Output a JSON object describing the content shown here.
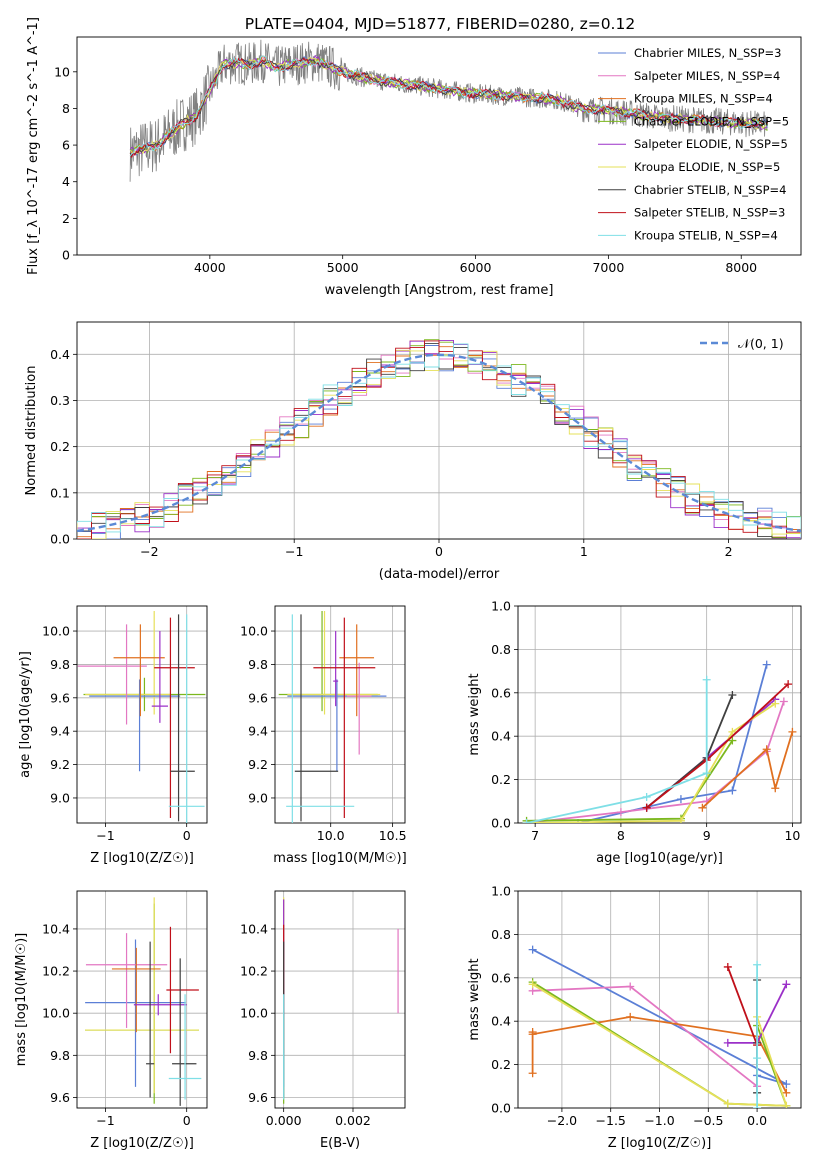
{
  "figure_title": "PLATE=0404, MJD=51877, FIBERID=0280, z=0.12",
  "chart_data": [
    {
      "id": "spectrum",
      "type": "line",
      "title": "PLATE=0404, MJD=51877, FIBERID=0280, z=0.12",
      "xlabel": "wavelength [Angstrom, rest frame]",
      "ylabel": "Flux [f_λ 10^-17 erg cm^-2 s^-1 A^-1]",
      "xlim": [
        3000,
        8450
      ],
      "ylim": [
        0,
        11.9
      ],
      "xticks": [
        4000,
        5000,
        6000,
        7000,
        8000
      ],
      "yticks": [
        0,
        2,
        4,
        6,
        8,
        10
      ],
      "grid": false,
      "legend_position": "top-right",
      "observed_continuum": {
        "x": [
          3400,
          3500,
          3600,
          3700,
          3800,
          3900,
          4000,
          4100,
          4200,
          4300,
          4400,
          4500,
          4600,
          4700,
          4800,
          4900,
          5000,
          5200,
          5400,
          5600,
          5800,
          6000,
          6200,
          6400,
          6600,
          6800,
          7000,
          7200,
          7400,
          7600,
          7800,
          8000,
          8200
        ],
        "y": [
          5.6,
          5.8,
          6.0,
          6.6,
          7.2,
          7.6,
          9.0,
          10.4,
          10.5,
          10.4,
          10.6,
          10.2,
          10.4,
          10.5,
          10.6,
          10.3,
          10.0,
          9.6,
          9.4,
          9.2,
          9.0,
          8.8,
          8.7,
          8.6,
          8.5,
          8.0,
          7.9,
          7.7,
          7.5,
          7.4,
          7.3,
          7.2,
          7.1
        ]
      },
      "series": [
        {
          "name": "Chabrier MILES, N_SSP=3",
          "color": "#5b7fd6"
        },
        {
          "name": "Salpeter MILES, N_SSP=4",
          "color": "#e377c2"
        },
        {
          "name": "Kroupa MILES, N_SSP=4",
          "color": "#e07020"
        },
        {
          "name": "Chabrier ELODIE, N_SSP=5",
          "color": "#7cb81e"
        },
        {
          "name": "Salpeter ELODIE, N_SSP=5",
          "color": "#9b30c8"
        },
        {
          "name": "Kroupa ELODIE, N_SSP=5",
          "color": "#e6e05a"
        },
        {
          "name": "Chabrier STELIB, N_SSP=4",
          "color": "#404040"
        },
        {
          "name": "Salpeter STELIB, N_SSP=3",
          "color": "#c0101a"
        },
        {
          "name": "Kroupa STELIB, N_SSP=4",
          "color": "#7fdfe6"
        }
      ]
    },
    {
      "id": "residuals",
      "type": "line",
      "xlabel": "(data-model)/error",
      "ylabel": "Normed distribution",
      "xlim": [
        -2.5,
        2.5
      ],
      "ylim": [
        0,
        0.47
      ],
      "xticks": [
        -2,
        -1,
        0,
        1,
        2
      ],
      "yticks": [
        0.0,
        0.1,
        0.2,
        0.3,
        0.4
      ],
      "grid": true,
      "legend": [
        "𝒩(0, 1)"
      ],
      "legend_position": "top-right",
      "reference_curve": "normal(0,1)"
    },
    {
      "id": "age_vs_Z",
      "type": "scatter",
      "xlabel": "Z [log10(Z/Z☉)]",
      "ylabel": "age [log10(age/yr)]",
      "xlim": [
        -1.35,
        0.25
      ],
      "ylim": [
        8.85,
        10.15
      ],
      "xticks": [
        -1,
        0
      ],
      "yticks": [
        9.0,
        9.2,
        9.4,
        9.6,
        9.8,
        10.0
      ],
      "grid": true,
      "points": [
        {
          "x": -0.52,
          "y": 9.62,
          "xerr": [
            0.75,
            0.75
          ],
          "yerr": [
            0.1,
            0.1
          ],
          "color": "#7cb81e"
        },
        {
          "x": -0.4,
          "y": 9.62,
          "xerr": [
            0.85,
            0.2
          ],
          "yerr": [
            0.12,
            0.5
          ],
          "color": "#e6e05a"
        },
        {
          "x": -0.58,
          "y": 9.61,
          "xerr": [
            0.62,
            0.5
          ],
          "yerr": [
            0.45,
            0.1
          ],
          "color": "#5b7fd6"
        },
        {
          "x": -0.74,
          "y": 9.79,
          "xerr": [
            0.6,
            0.25
          ],
          "yerr": [
            0.35,
            0.25
          ],
          "color": "#e377c2"
        },
        {
          "x": -0.57,
          "y": 9.84,
          "xerr": [
            0.33,
            0.3
          ],
          "yerr": [
            0.35,
            0.2
          ],
          "color": "#e07020"
        },
        {
          "x": -0.33,
          "y": 9.55,
          "xerr": [
            0.1,
            0.1
          ],
          "yerr": [
            0.1,
            0.45
          ],
          "color": "#9b30c8"
        },
        {
          "x": -0.2,
          "y": 9.78,
          "xerr": [
            0.2,
            0.3
          ],
          "yerr": [
            0.9,
            0.3
          ],
          "color": "#c0101a"
        },
        {
          "x": -0.1,
          "y": 9.16,
          "xerr": [
            0.1,
            0.2
          ],
          "yerr": [
            0.3,
            0.94
          ],
          "color": "#404040"
        },
        {
          "x": 0.0,
          "y": 8.95,
          "xerr": [
            0.22,
            0.22
          ],
          "yerr": [
            0.1,
            1.15
          ],
          "color": "#7fdfe6"
        }
      ]
    },
    {
      "id": "age_vs_mass",
      "type": "scatter",
      "xlabel": "mass [log10(M/M☉)]",
      "ylabel": "",
      "xlim": [
        9.55,
        10.6
      ],
      "ylim": [
        8.85,
        10.15
      ],
      "xticks": [
        9.5,
        10.0,
        10.5
      ],
      "yticks": [
        9.0,
        9.2,
        9.4,
        9.6,
        9.8,
        10.0
      ],
      "grid": true,
      "points": [
        {
          "x": 9.93,
          "y": 9.62,
          "xerr": [
            0.35,
            0.45
          ],
          "yerr": [
            0.1,
            0.5
          ],
          "color": "#7cb81e"
        },
        {
          "x": 9.95,
          "y": 9.62,
          "xerr": [
            0.3,
            0.45
          ],
          "yerr": [
            0.12,
            0.5
          ],
          "color": "#e6e05a"
        },
        {
          "x": 10.05,
          "y": 9.61,
          "xerr": [
            0.4,
            0.4
          ],
          "yerr": [
            0.45,
            0.1
          ],
          "color": "#5b7fd6"
        },
        {
          "x": 10.23,
          "y": 9.61,
          "xerr": [
            0.1,
            0.1
          ],
          "yerr": [
            0.35,
            0.2
          ],
          "color": "#e377c2"
        },
        {
          "x": 10.21,
          "y": 9.84,
          "xerr": [
            0.14,
            0.14
          ],
          "yerr": [
            0.35,
            0.2
          ],
          "color": "#e07020"
        },
        {
          "x": 10.04,
          "y": 9.7,
          "xerr": [
            0.02,
            0.02
          ],
          "yerr": [
            0.15,
            0.3
          ],
          "color": "#9b30c8"
        },
        {
          "x": 10.11,
          "y": 9.78,
          "xerr": [
            0.25,
            0.25
          ],
          "yerr": [
            0.9,
            0.3
          ],
          "color": "#c0101a"
        },
        {
          "x": 9.76,
          "y": 9.16,
          "xerr": [
            0.05,
            0.3
          ],
          "yerr": [
            0.3,
            0.94
          ],
          "color": "#404040"
        },
        {
          "x": 9.69,
          "y": 8.95,
          "xerr": [
            0.05,
            0.5
          ],
          "yerr": [
            0.1,
            1.15
          ],
          "color": "#7fdfe6"
        }
      ]
    },
    {
      "id": "mass_weight_vs_age",
      "type": "line",
      "xlabel": "age [log10(age/yr)]",
      "ylabel": "mass weight",
      "xlim": [
        6.8,
        10.1
      ],
      "ylim": [
        0.0,
        1.0
      ],
      "xticks": [
        7,
        8,
        9,
        10
      ],
      "yticks": [
        0.0,
        0.2,
        0.4,
        0.6,
        0.8,
        1.0
      ],
      "grid": true,
      "series": [
        {
          "color": "#5b7fd6",
          "x": [
            7.5,
            8.7,
            9.3,
            9.7
          ],
          "y": [
            0.0,
            0.11,
            0.15,
            0.73
          ]
        },
        {
          "color": "#e377c2",
          "x": [
            6.9,
            8.0,
            9.0,
            9.7,
            9.9
          ],
          "y": [
            0.0,
            0.05,
            0.1,
            0.33,
            0.56
          ]
        },
        {
          "color": "#e07020",
          "x": [
            8.95,
            9.7,
            9.8,
            10.0
          ],
          "y": [
            0.07,
            0.34,
            0.16,
            0.42
          ]
        },
        {
          "color": "#7cb81e",
          "x": [
            6.9,
            8.7,
            9.3
          ],
          "y": [
            0.01,
            0.02,
            0.38
          ]
        },
        {
          "color": "#9b30c8",
          "x": [
            8.3,
            9.0,
            9.8
          ],
          "y": [
            0.07,
            0.3,
            0.57
          ]
        },
        {
          "color": "#e6e05a",
          "x": [
            6.9,
            8.7,
            9.3,
            9.8
          ],
          "y": [
            0.0,
            0.01,
            0.42,
            0.55
          ]
        },
        {
          "color": "#404040",
          "x": [
            8.3,
            9.0,
            9.3
          ],
          "y": [
            0.07,
            0.3,
            0.59
          ]
        },
        {
          "color": "#c0101a",
          "x": [
            8.3,
            9.0,
            9.95
          ],
          "y": [
            0.07,
            0.29,
            0.64
          ]
        },
        {
          "color": "#7fdfe6",
          "x": [
            6.9,
            8.3,
            9.0,
            9.0
          ],
          "y": [
            0.0,
            0.12,
            0.23,
            0.66
          ]
        }
      ]
    },
    {
      "id": "mass_vs_Z",
      "type": "scatter",
      "xlabel": "Z [log10(Z/Z☉)]",
      "ylabel": "mass [log10(M/M☉)]",
      "xlim": [
        -1.35,
        0.25
      ],
      "ylim": [
        9.55,
        10.58
      ],
      "xticks": [
        -1,
        0
      ],
      "yticks": [
        9.6,
        9.8,
        10.0,
        10.2,
        10.4
      ],
      "grid": true,
      "points": [
        {
          "x": -0.4,
          "y": 9.92,
          "xerr": [
            0.85,
            0.55
          ],
          "yerr": [
            0.35,
            0.6
          ],
          "color": "#7cb81e"
        },
        {
          "x": -0.4,
          "y": 9.92,
          "xerr": [
            0.85,
            0.55
          ],
          "yerr": [
            0.3,
            0.63
          ],
          "color": "#e6e05a"
        },
        {
          "x": -0.63,
          "y": 10.05,
          "xerr": [
            0.62,
            0.62
          ],
          "yerr": [
            0.4,
            0.3
          ],
          "color": "#5b7fd6"
        },
        {
          "x": -0.74,
          "y": 10.23,
          "xerr": [
            0.5,
            0.5
          ],
          "yerr": [
            0.3,
            0.15
          ],
          "color": "#e377c2"
        },
        {
          "x": -0.62,
          "y": 10.21,
          "xerr": [
            0.3,
            0.3
          ],
          "yerr": [
            0.3,
            0.1
          ],
          "color": "#e07020"
        },
        {
          "x": -0.35,
          "y": 10.04,
          "xerr": [
            0.3,
            0.35
          ],
          "yerr": [
            0.05,
            0.05
          ],
          "color": "#9b30c8"
        },
        {
          "x": -0.2,
          "y": 10.11,
          "xerr": [
            0.05,
            0.35
          ],
          "yerr": [
            0.3,
            0.3
          ],
          "color": "#c0101a"
        },
        {
          "x": -0.45,
          "y": 9.76,
          "xerr": [
            0.05,
            0.05
          ],
          "yerr": [
            0.16,
            0.58
          ],
          "color": "#404040"
        },
        {
          "x": -0.08,
          "y": 9.76,
          "xerr": [
            0.1,
            0.2
          ],
          "yerr": [
            0.2,
            0.5
          ],
          "color": "#404040"
        },
        {
          "x": -0.02,
          "y": 9.69,
          "xerr": [
            0.2,
            0.2
          ],
          "yerr": [
            0.1,
            0.4
          ],
          "color": "#7fdfe6"
        }
      ]
    },
    {
      "id": "mass_vs_EBV",
      "type": "scatter",
      "xlabel": "E(B-V)",
      "ylabel": "",
      "xlim": [
        -0.00025,
        0.0035
      ],
      "ylim": [
        9.55,
        10.58
      ],
      "xticks": [
        0.0,
        0.002
      ],
      "xtick_labels": [
        "0.000",
        "0.002"
      ],
      "yticks": [
        9.6,
        9.8,
        10.0,
        10.2,
        10.4
      ],
      "grid": true,
      "points": [
        {
          "x": 0.0,
          "y": 9.92,
          "yerr": [
            0.35,
            0.62
          ],
          "color": "#7cb81e"
        },
        {
          "x": 0.0,
          "y": 9.92,
          "yerr": [
            0.3,
            0.63
          ],
          "color": "#e6e05a"
        },
        {
          "x": 0.0,
          "y": 10.05,
          "yerr": [
            0.4,
            0.3
          ],
          "color": "#5b7fd6"
        },
        {
          "x": 0.0,
          "y": 10.04,
          "yerr": [
            0.05,
            0.5
          ],
          "color": "#9b30c8"
        },
        {
          "x": 0.0,
          "y": 10.11,
          "yerr": [
            0.3,
            0.31
          ],
          "color": "#c0101a"
        },
        {
          "x": 0.0,
          "y": 9.76,
          "yerr": [
            0.16,
            0.58
          ],
          "color": "#404040"
        },
        {
          "x": 0.0,
          "y": 9.69,
          "yerr": [
            0.1,
            0.4
          ],
          "color": "#7fdfe6"
        },
        {
          "x": 0.0033,
          "y": 10.2,
          "yerr": [
            0.2,
            0.2
          ],
          "color": "#e377c2"
        }
      ]
    },
    {
      "id": "mass_weight_vs_Z",
      "type": "line",
      "xlabel": "Z [log10(Z/Z☉)]",
      "ylabel": "mass weight",
      "xlim": [
        -2.45,
        0.45
      ],
      "ylim": [
        0.0,
        1.0
      ],
      "xticks": [
        -2.0,
        -1.5,
        -1.0,
        -0.5,
        0.0
      ],
      "yticks": [
        0.0,
        0.2,
        0.4,
        0.6,
        0.8,
        1.0
      ],
      "grid": true,
      "series": [
        {
          "color": "#5b7fd6",
          "x": [
            -2.3,
            0.3,
            0.0
          ],
          "y": [
            0.73,
            0.11,
            0.15
          ]
        },
        {
          "color": "#e377c2",
          "x": [
            -2.3,
            -1.3,
            0.0,
            0.0
          ],
          "y": [
            0.54,
            0.56,
            0.1,
            0.33
          ]
        },
        {
          "color": "#e07020",
          "x": [
            -2.3,
            -2.3,
            -2.3,
            -1.3,
            0.0,
            0.3
          ],
          "y": [
            0.16,
            0.35,
            0.34,
            0.42,
            0.33,
            0.07
          ]
        },
        {
          "color": "#7cb81e",
          "x": [
            -2.3,
            -0.3,
            0.3,
            0.0
          ],
          "y": [
            0.58,
            0.02,
            0.01,
            0.38
          ]
        },
        {
          "color": "#9b30c8",
          "x": [
            -0.3,
            0.0,
            0.3
          ],
          "y": [
            0.3,
            0.3,
            0.57
          ]
        },
        {
          "color": "#e6e05a",
          "x": [
            -2.3,
            -0.3,
            0.3,
            0.0
          ],
          "y": [
            0.57,
            0.02,
            0.01,
            0.42
          ]
        },
        {
          "color": "#404040",
          "x": [
            0.0,
            0.0,
            0.0
          ],
          "y": [
            0.59,
            0.3,
            0.07
          ]
        },
        {
          "color": "#c0101a",
          "x": [
            -0.3,
            0.0
          ],
          "y": [
            0.65,
            0.29
          ]
        },
        {
          "color": "#7fdfe6",
          "x": [
            0.0,
            0.0,
            0.0
          ],
          "y": [
            0.66,
            0.23,
            0.0
          ]
        }
      ]
    }
  ]
}
